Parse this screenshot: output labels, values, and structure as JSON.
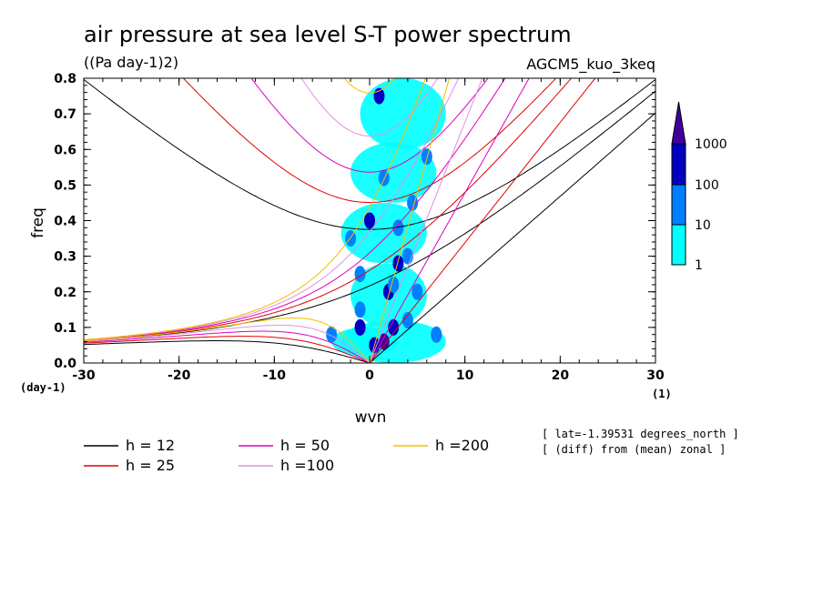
{
  "title": "air pressure at sea level S-T power spectrum",
  "units": "((Pa day-1)2)",
  "experiment": "AGCM5_kuo_3keq",
  "annotations": [
    "[ lat=-1.39531 degrees_north ]",
    "[ (diff) from (mean) zonal ]"
  ],
  "colors": {
    "h12": "#000000",
    "h25": "#e00000",
    "h50": "#e000c0",
    "h100": "#e090e0",
    "h200": "#f0c000",
    "level1": "#00ffff",
    "level2": "#0080ff",
    "level3": "#0000c0",
    "level4": "#4000a0"
  },
  "chart_data": {
    "type": "heatmap",
    "xlabel": "wvn",
    "ylabel": "freq",
    "x_unit": "(1)",
    "y_unit": "(day-1)",
    "xlim": [
      -30,
      30
    ],
    "ylim": [
      0,
      0.8
    ],
    "x_ticks": [
      "-30",
      "-20",
      "-10",
      "0",
      "10",
      "20",
      "30"
    ],
    "y_ticks": [
      "0.0",
      "0.1",
      "0.2",
      "0.3",
      "0.4",
      "0.5",
      "0.6",
      "0.7",
      "0.8"
    ],
    "colorbar": {
      "levels": [
        "1",
        "10",
        "100",
        "1000"
      ]
    },
    "legend": [
      "h = 12",
      "h = 25",
      "h = 50",
      "h =100",
      "h =200"
    ],
    "series": [
      {
        "name": "h = 12",
        "color": "#000000"
      },
      {
        "name": "h = 25",
        "color": "#e00000"
      },
      {
        "name": "h = 50",
        "color": "#e000c0"
      },
      {
        "name": "h =100",
        "color": "#e090e0"
      },
      {
        "name": "h =200",
        "color": "#f0c000"
      }
    ],
    "spectrum_blobs": [
      {
        "x": 0.5,
        "y": 0.05,
        "level": 3
      },
      {
        "x": 1.5,
        "y": 0.06,
        "level": 4
      },
      {
        "x": 2.5,
        "y": 0.1,
        "level": 3
      },
      {
        "x": -1,
        "y": 0.1,
        "level": 3
      },
      {
        "x": -1,
        "y": 0.15,
        "level": 2
      },
      {
        "x": 2,
        "y": 0.2,
        "level": 3
      },
      {
        "x": 3,
        "y": 0.28,
        "level": 3
      },
      {
        "x": 2.5,
        "y": 0.22,
        "level": 2
      },
      {
        "x": 4,
        "y": 0.3,
        "level": 2
      },
      {
        "x": -1,
        "y": 0.25,
        "level": 2
      },
      {
        "x": 5,
        "y": 0.2,
        "level": 2
      },
      {
        "x": 4,
        "y": 0.12,
        "level": 2
      },
      {
        "x": 0,
        "y": 0.4,
        "level": 3
      },
      {
        "x": 1,
        "y": 0.75,
        "level": 3
      },
      {
        "x": -2,
        "y": 0.35,
        "level": 2
      },
      {
        "x": 3,
        "y": 0.38,
        "level": 2
      },
      {
        "x": 1.5,
        "y": 0.52,
        "level": 2
      },
      {
        "x": 4.5,
        "y": 0.45,
        "level": 2
      },
      {
        "x": 6,
        "y": 0.58,
        "level": 2
      },
      {
        "x": 7,
        "y": 0.08,
        "level": 2
      },
      {
        "x": -4,
        "y": 0.08,
        "level": 2
      }
    ]
  }
}
